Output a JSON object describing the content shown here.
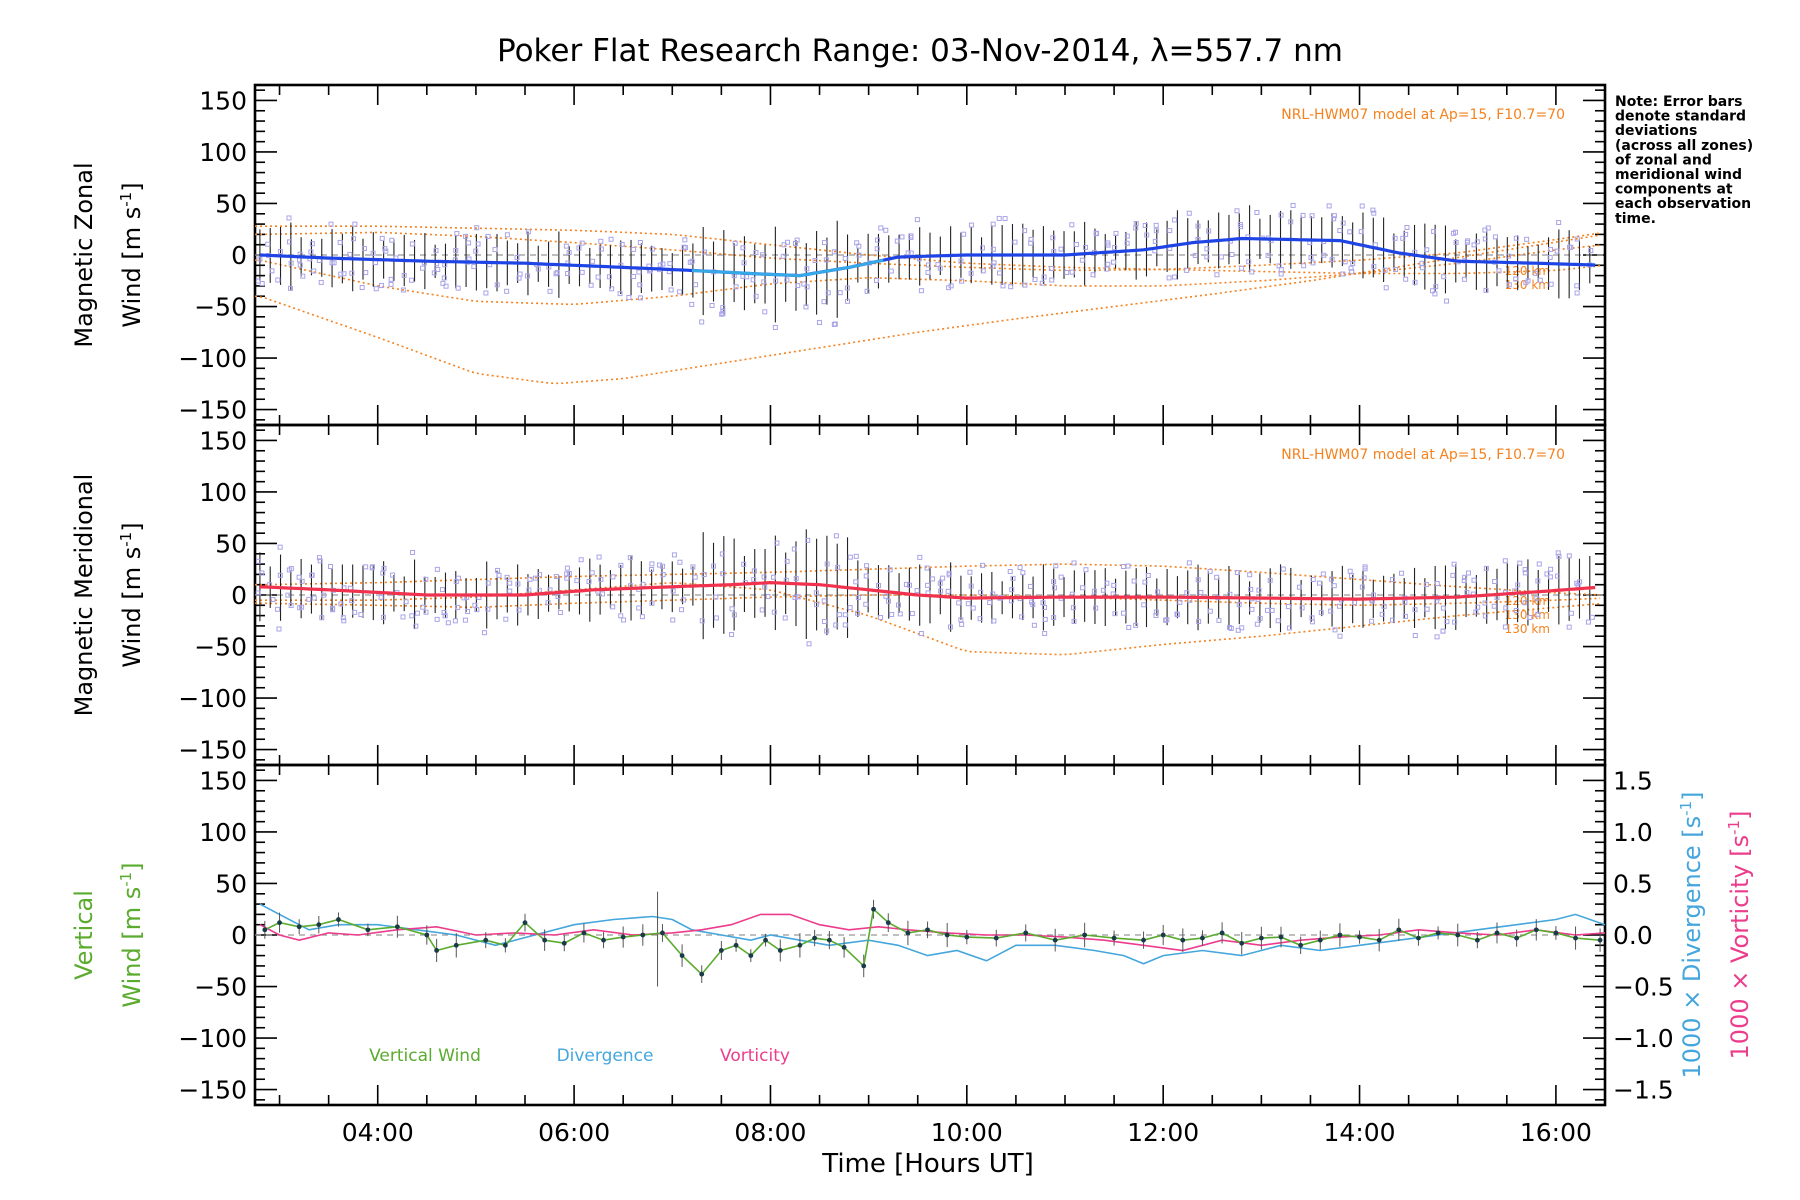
{
  "title": "Poker Flat Research Range: 03-Nov-2014, λ=557.7 nm",
  "xlabel": "Time [Hours UT]",
  "note": [
    "Note: Error bars",
    "denote standard",
    "deviations",
    "(across all zones)",
    "of zonal and",
    "meridional wind",
    "components at",
    "each observation",
    "time."
  ],
  "colors": {
    "zonal": "#1f44e6",
    "zonal_light": "#35a8e6",
    "meridional": "#f0324e",
    "model": "#f5821f",
    "zone_scatter": "#a8a4e8",
    "vertical": "#5aab2e",
    "divergence": "#44a6dc",
    "vorticity": "#ec3c8c",
    "errbar": "#222222"
  },
  "chart_data": [
    {
      "type": "line",
      "panel": "zonal",
      "ylabel_line1": "Magnetic Zonal",
      "ylabel_line2": "Wind [m s",
      "ylabel_sup": "-1",
      "ylabel_close": "]",
      "model_label": "NRL-HWM07 model at Ap=15, F10.7=70",
      "model_alt_labels": [
        "120 km",
        "130 km"
      ],
      "xlim": [
        2.75,
        16.5
      ],
      "ylim": [
        -165,
        165
      ],
      "yticks": [
        -150,
        -100,
        -50,
        0,
        50,
        100,
        150
      ],
      "yticklabels": [
        "−150",
        "−100",
        "−50",
        "0",
        "50",
        "100",
        "150"
      ],
      "series": [
        {
          "x": [
            2.8,
            3.5,
            4.5,
            5.5,
            6.5,
            7.2,
            7.8,
            8.3,
            8.8,
            9.3,
            10.0,
            11.0,
            11.8,
            12.3,
            12.8,
            13.3,
            13.8,
            14.4,
            15.0,
            15.8,
            16.5
          ],
          "y": [
            0,
            -3,
            -6,
            -8,
            -12,
            -15,
            -18,
            -20,
            -12,
            -2,
            0,
            0,
            5,
            12,
            16,
            15,
            14,
            2,
            -6,
            -8,
            -10
          ]
        },
        {
          "x": [
            2.8,
            4.0,
            5.0,
            6.0,
            7.0,
            8.0,
            9.0,
            10.0,
            11.0,
            12.0,
            13.0,
            14.0,
            15.0,
            16.0,
            16.5
          ],
          "y": [
            20,
            22,
            18,
            12,
            5,
            -3,
            -8,
            -12,
            -15,
            -14,
            -10,
            -5,
            2,
            15,
            22
          ]
        },
        {
          "x": [
            2.8,
            4.0,
            5.0,
            6.0,
            7.0,
            8.0,
            9.0,
            10.0,
            11.0,
            12.0,
            13.0,
            14.0,
            15.0,
            16.0,
            16.5
          ],
          "y": [
            -5,
            -30,
            -45,
            -48,
            -40,
            -28,
            -22,
            -25,
            -30,
            -30,
            -25,
            -18,
            -8,
            5,
            10
          ]
        },
        {
          "x": [
            2.8,
            4.0,
            5.0,
            5.8,
            6.5,
            7.5,
            8.5,
            9.5,
            10.5,
            11.5,
            12.5,
            13.5,
            14.5,
            15.5,
            16.5
          ],
          "y": [
            -40,
            -80,
            -115,
            -125,
            -120,
            -105,
            -90,
            -75,
            -62,
            -50,
            -38,
            -25,
            -10,
            5,
            20
          ]
        },
        {
          "x": [
            2.8,
            4.0,
            5.0,
            6.0,
            7.0,
            8.0,
            9.0,
            10.0,
            11.0,
            12.0,
            13.0,
            14.0,
            15.0,
            16.0,
            16.5
          ],
          "y": [
            28,
            28,
            26,
            24,
            20,
            10,
            0,
            -8,
            -12,
            -14,
            -16,
            -18,
            -18,
            -15,
            -10
          ]
        }
      ]
    },
    {
      "type": "line",
      "panel": "meridional",
      "ylabel_line1": "Magnetic Meridional",
      "ylabel_line2": "Wind [m s",
      "ylabel_sup": "-1",
      "ylabel_close": "]",
      "model_label": "NRL-HWM07 model at Ap=15, F10.7=70",
      "model_alt_labels": [
        "120 km",
        "130 km",
        "130 km"
      ],
      "xlim": [
        2.75,
        16.5
      ],
      "ylim": [
        -165,
        165
      ],
      "yticks": [
        -150,
        -100,
        -50,
        0,
        50,
        100,
        150
      ],
      "yticklabels": [
        "−150",
        "−100",
        "−50",
        "0",
        "50",
        "100",
        "150"
      ],
      "series": [
        {
          "x": [
            2.8,
            3.5,
            4.5,
            5.5,
            6.2,
            7.0,
            7.6,
            8.0,
            8.5,
            9.0,
            9.5,
            10.0,
            11.0,
            12.0,
            13.0,
            14.0,
            15.0,
            15.8,
            16.5
          ],
          "y": [
            8,
            5,
            0,
            0,
            5,
            8,
            10,
            12,
            10,
            5,
            0,
            -3,
            -2,
            -2,
            -3,
            -4,
            -2,
            3,
            8
          ]
        },
        {
          "x": [
            2.8,
            4.0,
            5.0,
            6.0,
            7.0,
            8.0,
            9.0,
            10.0,
            11.0,
            12.0,
            13.0,
            14.0,
            15.0,
            16.0,
            16.5
          ],
          "y": [
            10,
            12,
            15,
            18,
            20,
            22,
            25,
            28,
            30,
            28,
            22,
            15,
            8,
            2,
            0
          ]
        },
        {
          "x": [
            2.8,
            4.0,
            5.0,
            6.0,
            7.0,
            8.0,
            9.0,
            10.0,
            11.0,
            12.0,
            13.0,
            14.0,
            15.0,
            16.0,
            16.5
          ],
          "y": [
            -8,
            -10,
            -12,
            -8,
            -5,
            -2,
            0,
            0,
            -2,
            -5,
            -8,
            -10,
            -8,
            -5,
            -3
          ]
        },
        {
          "x": [
            2.8,
            4.0,
            5.0,
            6.0,
            7.0,
            8.0,
            9.0,
            10.0,
            11.0,
            12.0,
            13.0,
            14.0,
            15.0,
            16.0,
            16.5
          ],
          "y": [
            -5,
            -5,
            -2,
            5,
            12,
            5,
            -20,
            -55,
            -58,
            -48,
            -40,
            -30,
            -20,
            -12,
            -8
          ]
        }
      ]
    },
    {
      "type": "line",
      "panel": "vertical",
      "ylabel_line1": "Vertical",
      "ylabel_line2": "Wind [m s",
      "ylabel_sup": "-1",
      "ylabel_close": "]",
      "right_label_div": "1000 × Divergence [s",
      "right_label_vort": "1000 × Vorticity [s",
      "right_sup": "-1",
      "right_close": "]",
      "legend": [
        "Vertical Wind",
        "Divergence",
        "Vorticity"
      ],
      "xlim": [
        2.75,
        16.5
      ],
      "ylim": [
        -165,
        165
      ],
      "yticks": [
        -150,
        -100,
        -50,
        0,
        50,
        100,
        150
      ],
      "yticklabels": [
        "−150",
        "−100",
        "−50",
        "0",
        "50",
        "100",
        "150"
      ],
      "y2lim": [
        -1.65,
        1.65
      ],
      "y2ticks": [
        -1.5,
        -1.0,
        -0.5,
        0.0,
        0.5,
        1.0,
        1.5
      ],
      "y2ticklabels": [
        "−1.5",
        "−1.0",
        "−0.5",
        "0.0",
        "0.5",
        "1.0",
        "1.5"
      ],
      "xticks": [
        4,
        6,
        8,
        10,
        12,
        14,
        16
      ],
      "xticklabels": [
        "04:00",
        "06:00",
        "08:00",
        "10:00",
        "12:00",
        "14:00",
        "16:00"
      ],
      "series": [
        {
          "name": "Vertical Wind",
          "x": [
            2.85,
            3.0,
            3.2,
            3.4,
            3.6,
            3.9,
            4.2,
            4.5,
            4.6,
            4.8,
            5.1,
            5.3,
            5.5,
            5.7,
            5.9,
            6.1,
            6.3,
            6.5,
            6.7,
            6.9,
            7.1,
            7.3,
            7.5,
            7.65,
            7.8,
            7.95,
            8.1,
            8.3,
            8.45,
            8.6,
            8.75,
            8.95,
            9.05,
            9.2,
            9.4,
            9.6,
            9.8,
            10.0,
            10.3,
            10.6,
            10.9,
            11.2,
            11.5,
            11.8,
            12.0,
            12.2,
            12.4,
            12.6,
            12.8,
            13.0,
            13.2,
            13.4,
            13.6,
            13.8,
            14.0,
            14.2,
            14.4,
            14.6,
            14.8,
            15.0,
            15.2,
            15.4,
            15.6,
            15.8,
            16.0,
            16.2,
            16.45
          ],
          "y": [
            5,
            12,
            8,
            10,
            15,
            5,
            8,
            0,
            -15,
            -10,
            -5,
            -10,
            12,
            -5,
            -8,
            2,
            -5,
            -2,
            0,
            2,
            -20,
            -38,
            -15,
            -10,
            -20,
            -5,
            -15,
            -10,
            -3,
            -5,
            -12,
            -30,
            25,
            12,
            2,
            5,
            0,
            -2,
            -3,
            2,
            -5,
            0,
            -3,
            -5,
            0,
            -5,
            -3,
            2,
            -8,
            -3,
            -2,
            -10,
            -5,
            0,
            -2,
            -5,
            5,
            -3,
            2,
            0,
            -5,
            2,
            -3,
            5,
            2,
            -3,
            -5
          ]
        },
        {
          "name": "Divergence",
          "x": [
            2.8,
            3.0,
            3.3,
            3.6,
            4.0,
            4.4,
            4.8,
            5.2,
            5.6,
            6.0,
            6.4,
            6.8,
            7.0,
            7.2,
            7.5,
            7.8,
            8.0,
            8.3,
            8.6,
            9.0,
            9.3,
            9.6,
            9.9,
            10.2,
            10.5,
            10.9,
            11.3,
            11.6,
            11.8,
            12.0,
            12.4,
            12.8,
            13.2,
            13.6,
            14.0,
            14.4,
            14.8,
            15.2,
            15.6,
            16.0,
            16.2,
            16.5
          ],
          "y": [
            0.3,
            0.2,
            0.05,
            0.1,
            0.1,
            0.05,
            0.0,
            -0.1,
            0.0,
            0.1,
            0.15,
            0.18,
            0.15,
            0.05,
            0.0,
            -0.05,
            0.0,
            -0.05,
            -0.1,
            -0.05,
            -0.1,
            -0.2,
            -0.15,
            -0.25,
            -0.1,
            -0.1,
            -0.15,
            -0.2,
            -0.28,
            -0.2,
            -0.15,
            -0.2,
            -0.1,
            -0.15,
            -0.1,
            -0.05,
            0.0,
            0.05,
            0.1,
            0.15,
            0.2,
            0.1
          ]
        },
        {
          "name": "Vorticity",
          "x": [
            2.8,
            3.0,
            3.2,
            3.5,
            3.8,
            4.2,
            4.6,
            5.0,
            5.4,
            5.8,
            6.2,
            6.6,
            7.0,
            7.3,
            7.6,
            7.9,
            8.2,
            8.5,
            8.8,
            9.1,
            9.4,
            9.8,
            10.2,
            10.6,
            11.0,
            11.4,
            11.8,
            12.2,
            12.6,
            13.0,
            13.4,
            13.8,
            14.2,
            14.6,
            15.0,
            15.4,
            15.8,
            16.2,
            16.5
          ],
          "y": [
            0.1,
            0.0,
            -0.05,
            0.02,
            0.0,
            0.05,
            0.08,
            0.0,
            0.02,
            0.0,
            0.05,
            0.0,
            0.02,
            0.05,
            0.1,
            0.2,
            0.2,
            0.1,
            0.05,
            0.08,
            0.05,
            0.02,
            0.0,
            0.0,
            -0.02,
            -0.05,
            -0.1,
            -0.15,
            -0.05,
            -0.1,
            -0.05,
            -0.02,
            0.0,
            0.05,
            0.02,
            0.0,
            0.05,
            0.0,
            0.02
          ]
        }
      ]
    }
  ]
}
